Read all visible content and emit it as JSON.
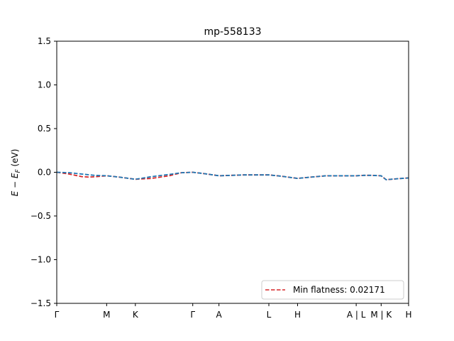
{
  "chart_data": {
    "type": "line",
    "title": "mp-558133",
    "ylabel": "E − E_F (eV)",
    "xlabel": "",
    "ylim": [
      -1.5,
      1.5
    ],
    "xlim": [
      0,
      14.1
    ],
    "y_ticks": [
      {
        "value": 1.5,
        "label": "1.5"
      },
      {
        "value": 1.0,
        "label": "1.0"
      },
      {
        "value": 0.5,
        "label": "0.5"
      },
      {
        "value": 0.0,
        "label": "0.0"
      },
      {
        "value": -0.5,
        "label": "−0.5"
      },
      {
        "value": -1.0,
        "label": "−1.0"
      },
      {
        "value": -1.5,
        "label": "−1.5"
      }
    ],
    "x_ticks": [
      {
        "value": 0.0,
        "label": "Γ"
      },
      {
        "value": 2.0,
        "label": "M"
      },
      {
        "value": 3.15,
        "label": "K"
      },
      {
        "value": 5.45,
        "label": "Γ"
      },
      {
        "value": 6.5,
        "label": "A"
      },
      {
        "value": 8.5,
        "label": "L"
      },
      {
        "value": 9.65,
        "label": "H"
      },
      {
        "value": 12.0,
        "label": "A | L"
      },
      {
        "value": 13.0,
        "label": "M | K"
      },
      {
        "value": 14.1,
        "label": "H"
      }
    ],
    "grid": false,
    "legend": {
      "position": "lower-right",
      "entries": [
        {
          "label": "Min flatness: 0.02171",
          "color": "#d62728",
          "style": "dashed"
        }
      ]
    },
    "series": [
      {
        "color": "#d62728",
        "style": "dashed",
        "x": [
          0,
          0.5,
          1.0,
          1.3,
          1.6,
          2.0,
          2.5,
          3.15,
          3.8,
          4.5,
          5.0,
          5.45,
          5.9,
          6.5,
          7.0,
          7.5,
          8.0,
          8.5,
          9.0,
          9.65,
          10.2,
          10.8,
          11.3,
          12.0,
          12.3,
          12.6,
          13.0,
          13.2,
          13.6,
          14.1
        ],
        "values": [
          0.0,
          -0.02,
          -0.05,
          -0.055,
          -0.05,
          -0.04,
          -0.055,
          -0.08,
          -0.07,
          -0.04,
          -0.005,
          0.0,
          -0.015,
          -0.04,
          -0.035,
          -0.03,
          -0.03,
          -0.03,
          -0.045,
          -0.07,
          -0.055,
          -0.04,
          -0.04,
          -0.04,
          -0.035,
          -0.035,
          -0.04,
          -0.085,
          -0.075,
          -0.065
        ]
      },
      {
        "color": "#1f77b4",
        "style": "dashed",
        "x": [
          0,
          0.5,
          1.0,
          1.5,
          2.0,
          2.5,
          3.15,
          3.8,
          4.5,
          5.0,
          5.45,
          5.9,
          6.5,
          7.0,
          7.5,
          8.0,
          8.5,
          9.0,
          9.65,
          10.2,
          10.8,
          11.3,
          12.0,
          12.3,
          12.6,
          13.0,
          13.2,
          13.6,
          14.1
        ],
        "values": [
          0.0,
          -0.005,
          -0.02,
          -0.035,
          -0.04,
          -0.055,
          -0.08,
          -0.05,
          -0.025,
          -0.005,
          0.0,
          -0.015,
          -0.04,
          -0.035,
          -0.03,
          -0.03,
          -0.03,
          -0.045,
          -0.07,
          -0.055,
          -0.04,
          -0.04,
          -0.04,
          -0.035,
          -0.035,
          -0.04,
          -0.085,
          -0.075,
          -0.065
        ]
      }
    ]
  }
}
